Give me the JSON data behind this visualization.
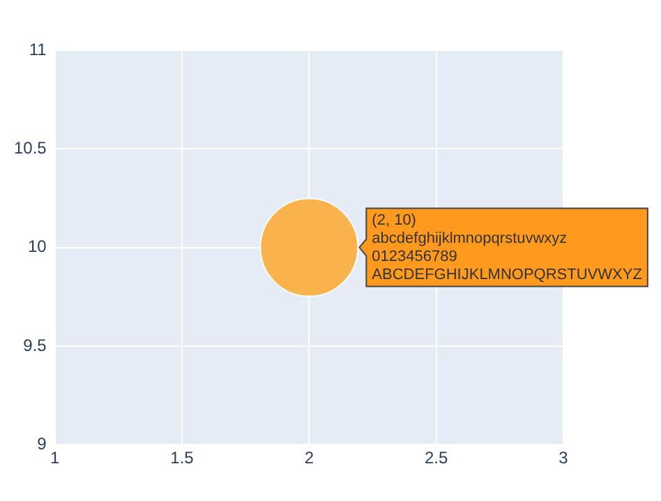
{
  "chart_data": {
    "type": "bubble",
    "x": [
      2
    ],
    "values": [
      10
    ],
    "sizes": [
      1
    ],
    "color": "#fab24c",
    "marker": "circle",
    "xlim": [
      1,
      3
    ],
    "xticks": [
      1,
      1.5,
      2,
      2.5,
      3
    ],
    "ylim": [
      9,
      11
    ],
    "yticks": [
      9,
      9.5,
      10,
      10.5,
      11
    ],
    "grid": true,
    "legend": false,
    "annotations": [
      "(2, 10)\nabcdefghijklmnopqrstuvwxyz\n0123456789\nABCDEFGHIJKLMNOPQRSTUVWXYZ"
    ]
  }
}
